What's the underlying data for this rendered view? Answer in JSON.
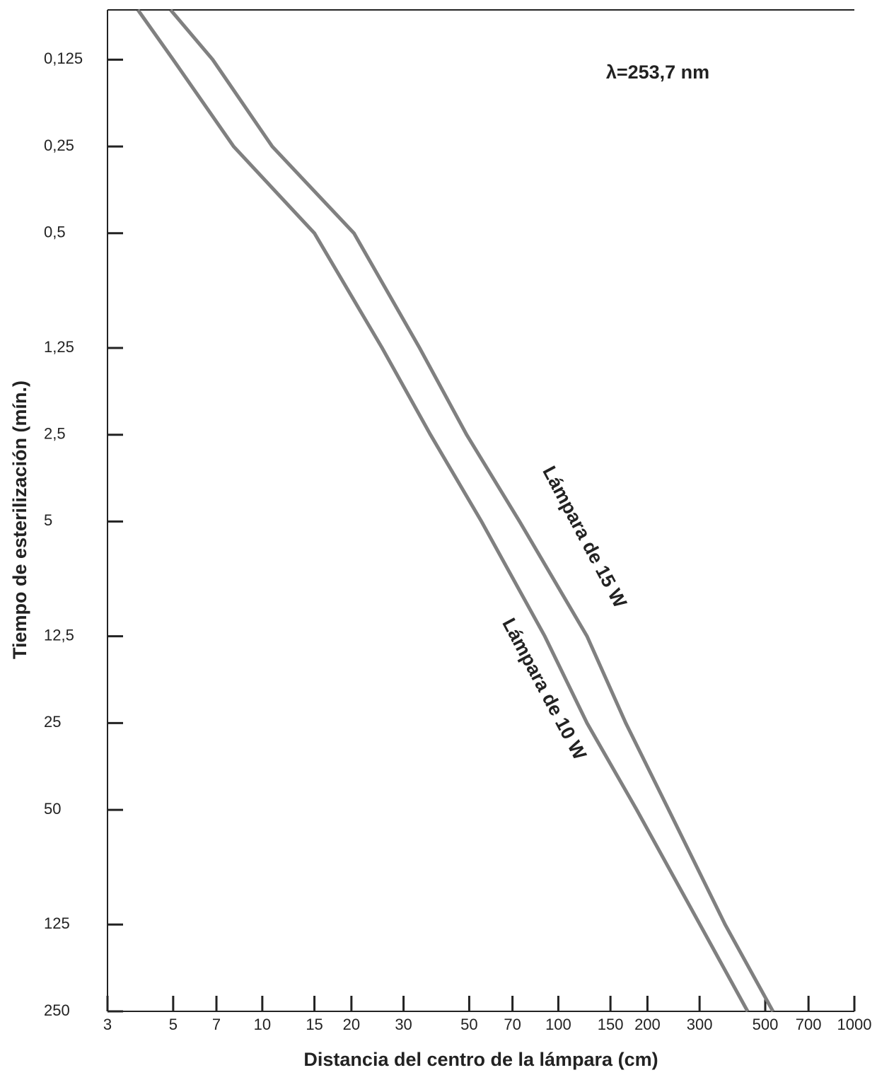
{
  "chart_data": {
    "type": "line",
    "annotation": "λ=253,7 nm",
    "x_label": "Distancia del centro de la lámpara (cm)",
    "y_label": "Tiempo de esterilización (mín.)",
    "x_log": true,
    "y_log": true,
    "y_inverted": true,
    "xlim": [
      3,
      1000
    ],
    "xticks": [
      3,
      5,
      7,
      10,
      15,
      20,
      30,
      50,
      70,
      100,
      150,
      200,
      300,
      500,
      700,
      1000
    ],
    "ylim": [
      0.084,
      250
    ],
    "yticks": [
      {
        "value": 0.125,
        "label": "0,125"
      },
      {
        "value": 0.25,
        "label": "0,25"
      },
      {
        "value": 0.5,
        "label": "0,5"
      },
      {
        "value": 1.25,
        "label": "1,25"
      },
      {
        "value": 2.5,
        "label": "2,5"
      },
      5,
      {
        "value": 12.5,
        "label": "12,5"
      },
      25,
      50,
      125,
      250
    ],
    "series": [
      {
        "name": "Lámpara de 15 W",
        "color": "#808080",
        "x": [
          4.9,
          6.8,
          10.8,
          20.4,
          34,
          49,
          74,
          125,
          169,
          236,
          366,
          531
        ],
        "values": [
          0.084,
          0.125,
          0.25,
          0.5,
          1.25,
          2.5,
          5,
          12.5,
          25,
          50,
          125,
          250
        ]
      },
      {
        "name": "Lámpara de 10 W",
        "color": "#808080",
        "x": [
          3.8,
          5.0,
          8.0,
          15.0,
          25.4,
          37,
          55,
          90,
          125,
          184,
          301,
          436
        ],
        "values": [
          0.084,
          0.125,
          0.25,
          0.5,
          1.25,
          2.5,
          5,
          12.5,
          25,
          50,
          125,
          250
        ]
      }
    ]
  }
}
